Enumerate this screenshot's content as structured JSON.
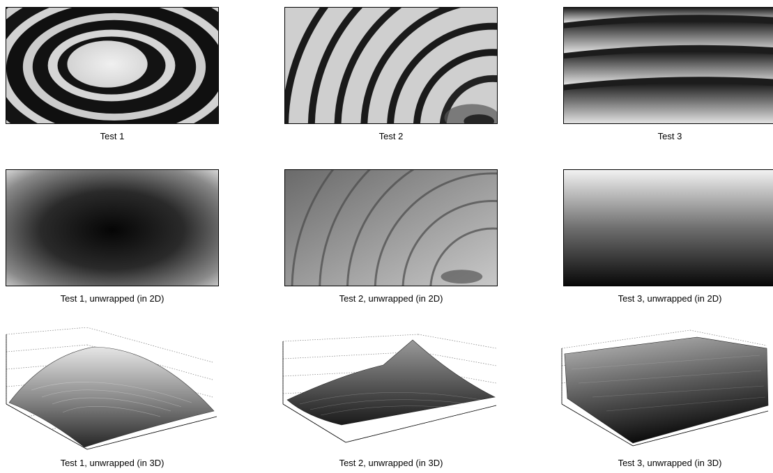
{
  "figure": {
    "colormap": "grayscale",
    "panels": [
      {
        "id": "test1",
        "caption": "Test 1",
        "kind": "wrapped-phase"
      },
      {
        "id": "test2",
        "caption": "Test 2",
        "kind": "wrapped-phase"
      },
      {
        "id": "test3",
        "caption": "Test 3",
        "kind": "wrapped-phase"
      },
      {
        "id": "test1-2d",
        "caption": "Test 1, unwrapped (in 2D)",
        "kind": "unwrapped-2d"
      },
      {
        "id": "test2-2d",
        "caption": "Test 2, unwrapped (in 2D)",
        "kind": "unwrapped-2d"
      },
      {
        "id": "test3-2d",
        "caption": "Test 3, unwrapped (in 2D)",
        "kind": "unwrapped-2d"
      },
      {
        "id": "test1-3d",
        "caption": "Test 1, unwrapped (in 3D)",
        "kind": "surface-3d"
      },
      {
        "id": "test2-3d",
        "caption": "Test 2, unwrapped (in 3D)",
        "kind": "surface-3d"
      },
      {
        "id": "test3-3d",
        "caption": "Test 3, unwrapped (in 3D)",
        "kind": "surface-3d"
      }
    ]
  }
}
